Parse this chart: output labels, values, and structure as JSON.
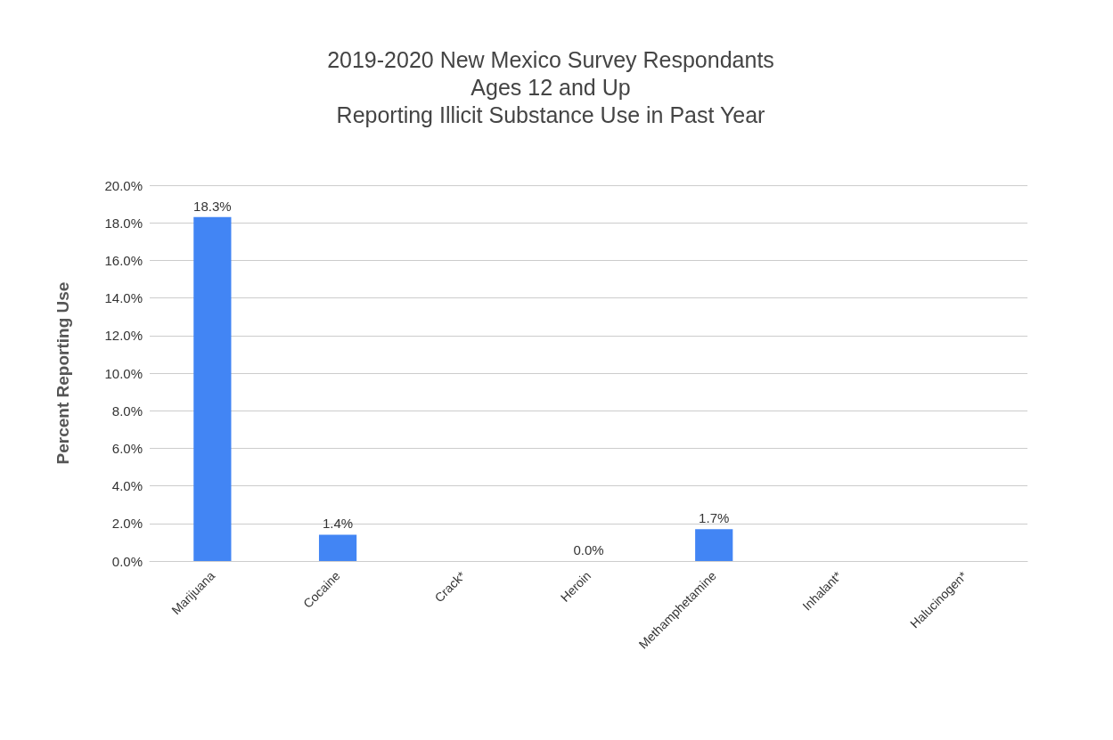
{
  "chart_data": {
    "type": "bar",
    "title": "2019-2020 New Mexico Survey Respondants\nAges 12 and Up\nReporting Illicit Substance Use in Past Year",
    "ylabel": "Percent Reporting Use",
    "categories": [
      "Marijuana",
      "Cocaine",
      "Crack*",
      "Heroin",
      "Methamphetamine",
      "Inhalant*",
      "Halucinogen*"
    ],
    "values": [
      18.3,
      1.4,
      null,
      0.0,
      1.7,
      null,
      null
    ],
    "value_labels": [
      "18.3%",
      "1.4%",
      null,
      "0.0%",
      "1.7%",
      null,
      null
    ],
    "color": "#4285f4",
    "ylim": [
      0,
      20
    ],
    "yticks": [
      {
        "value": 0,
        "label": "0.0%"
      },
      {
        "value": 2,
        "label": "2.0%"
      },
      {
        "value": 4,
        "label": "4.0%"
      },
      {
        "value": 6,
        "label": "6.0%"
      },
      {
        "value": 8,
        "label": "8.0%"
      },
      {
        "value": 10,
        "label": "10.0%"
      },
      {
        "value": 12,
        "label": "12.0%"
      },
      {
        "value": 14,
        "label": "14.0%"
      },
      {
        "value": 16,
        "label": "16.0%"
      },
      {
        "value": 18,
        "label": "18.0%"
      },
      {
        "value": 20,
        "label": "20.0%"
      }
    ],
    "grid": "y"
  }
}
